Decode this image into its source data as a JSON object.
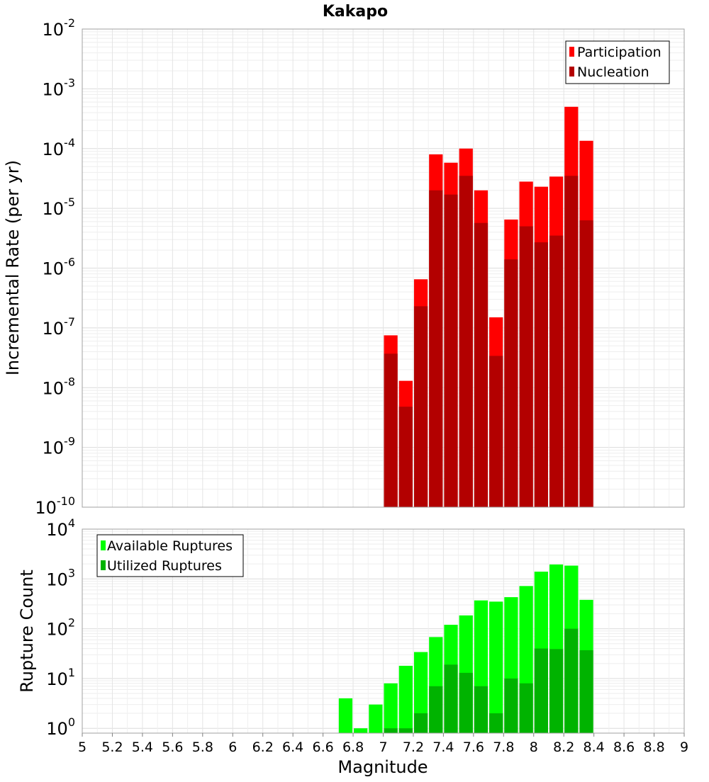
{
  "chart_data": [
    {
      "type": "bar",
      "title": "Kakapo",
      "ylabel": "Incremental Rate (per yr)",
      "xlabel": "",
      "ylog": true,
      "ylim": [
        1e-10,
        0.01
      ],
      "xlim": [
        5,
        9
      ],
      "bin_width": 0.1,
      "x": [
        7.05,
        7.15,
        7.25,
        7.35,
        7.45,
        7.55,
        7.65,
        7.75,
        7.85,
        7.95,
        8.05,
        8.15,
        8.25,
        8.35
      ],
      "series": [
        {
          "name": "Participation",
          "color": "#ff0000",
          "values": [
            7.5e-08,
            1.3e-08,
            6.5e-07,
            8e-05,
            5.8e-05,
            0.0001,
            2e-05,
            1.5e-07,
            6.5e-06,
            2.8e-05,
            2.3e-05,
            3.4e-05,
            0.0005,
            0.000135
          ]
        },
        {
          "name": "Nucleation",
          "color": "#b30000",
          "values": [
            3.7e-08,
            4.8e-09,
            2.3e-07,
            2e-05,
            1.7e-05,
            3.5e-05,
            5.7e-06,
            3.4e-08,
            1.4e-06,
            5e-06,
            2.7e-06,
            3.5e-06,
            3.5e-05,
            6.3e-06
          ]
        }
      ],
      "legend": "top-right",
      "grid": true
    },
    {
      "type": "bar",
      "title": "",
      "ylabel": "Rupture Count",
      "xlabel": "Magnitude",
      "ylog": true,
      "ylim": [
        0.8,
        10000
      ],
      "xlim": [
        5,
        9
      ],
      "bin_width": 0.1,
      "x": [
        6.75,
        6.85,
        6.95,
        7.05,
        7.15,
        7.25,
        7.35,
        7.45,
        7.55,
        7.65,
        7.75,
        7.85,
        7.95,
        8.05,
        8.15,
        8.25,
        8.35
      ],
      "series": [
        {
          "name": "Available Ruptures",
          "color": "#00ff00",
          "values": [
            4,
            1,
            3,
            8,
            18,
            34,
            68,
            120,
            185,
            370,
            350,
            430,
            720,
            1400,
            1950,
            1850,
            380
          ]
        },
        {
          "name": "Utilized Ruptures",
          "color": "#00b300",
          "values": [
            0,
            0,
            0,
            1,
            1,
            2,
            7,
            19,
            13,
            7,
            2,
            10,
            8,
            40,
            39,
            100,
            37
          ]
        }
      ],
      "legend": "top-left",
      "grid": true,
      "xticks": [
        "5",
        "5.2",
        "5.4",
        "5.6",
        "5.8",
        "6",
        "6.2",
        "6.4",
        "6.6",
        "6.8",
        "7",
        "7.2",
        "7.4",
        "7.6",
        "7.8",
        "8",
        "8.2",
        "8.4",
        "8.6",
        "8.8",
        "9"
      ]
    }
  ]
}
